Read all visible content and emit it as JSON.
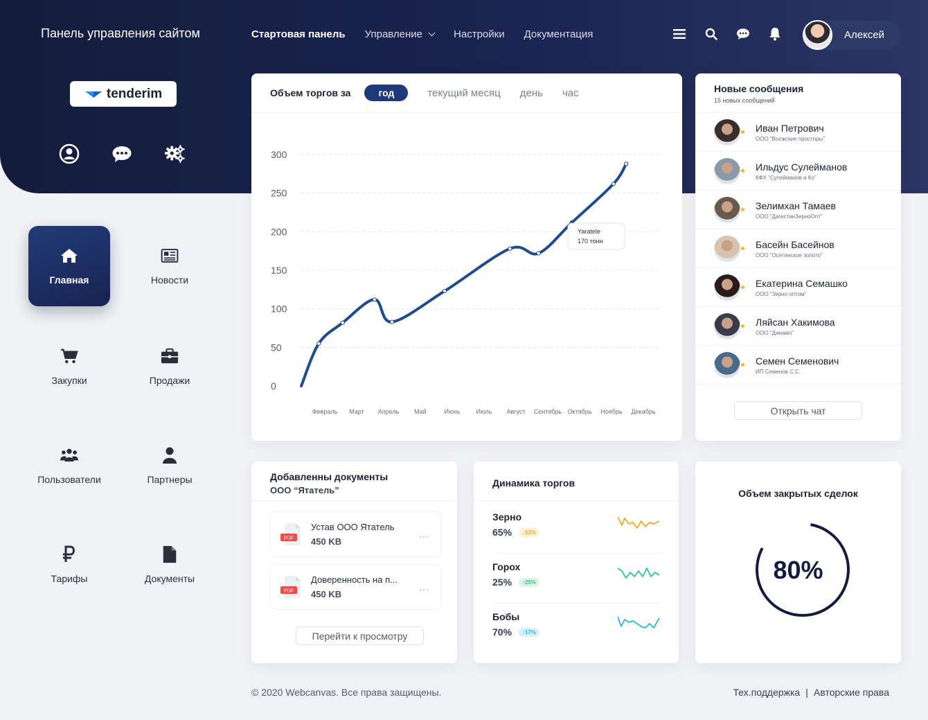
{
  "header": {
    "site_title": "Панель управления сайтом",
    "nav": [
      {
        "label": "Стартовая панель",
        "active": true
      },
      {
        "label": "Управление",
        "dropdown": true
      },
      {
        "label": "Настройки"
      },
      {
        "label": "Документация"
      }
    ],
    "icons": [
      "menu-icon",
      "search-icon",
      "chat-icon",
      "bell-icon"
    ],
    "user_name": "Алексей"
  },
  "logo": {
    "text": "tenderim"
  },
  "hero_icons": [
    "user-icon",
    "chat-icon",
    "gears-icon"
  ],
  "sidebar": {
    "items": [
      {
        "label": "Главная",
        "icon": "home-icon",
        "active": true
      },
      {
        "label": "Новости",
        "icon": "newspaper-icon"
      },
      {
        "label": "Закупки",
        "icon": "cart-icon"
      },
      {
        "label": "Продажи",
        "icon": "briefcase-icon"
      },
      {
        "label": "Пользователи",
        "icon": "users-icon"
      },
      {
        "label": "Партнеры",
        "icon": "person-icon"
      },
      {
        "label": "Тарифы",
        "icon": "ruble-icon"
      },
      {
        "label": "Документы",
        "icon": "document-icon"
      }
    ]
  },
  "volume_chart": {
    "title": "Объем торгов за",
    "tabs": [
      "год",
      "текущий месяц",
      "день",
      "час"
    ],
    "active_tab": "год",
    "tooltip": {
      "name": "Yaratele",
      "value": "170 тонн"
    }
  },
  "chart_data": {
    "type": "line",
    "title": "Объем торгов за",
    "categories": [
      "Февраль",
      "Март",
      "Апрель",
      "Май",
      "Июнь",
      "Июль",
      "Август",
      "Сентябрь",
      "Октябрь",
      "Ноябрь",
      "Декабрь"
    ],
    "x_points": [
      0,
      0.55,
      1.3,
      2.3,
      2.85,
      4.5,
      6.55,
      7.45,
      8.5,
      9.8,
      10.2
    ],
    "y_points": [
      0,
      55,
      82,
      112,
      83,
      123,
      178,
      172,
      212,
      262,
      288
    ],
    "yticks": [
      0,
      50,
      100,
      150,
      200,
      250,
      300
    ],
    "ylim": [
      0,
      300
    ],
    "grid": true,
    "color": "#1f4b8e"
  },
  "messages": {
    "title": "Новые сообщения",
    "subtitle": "15 новых сообщений",
    "items": [
      {
        "name": "Иван Петрович",
        "company": "ООО “Волжские просторы”",
        "color": "#3a2e2a"
      },
      {
        "name": "Ильдус Сулейманов",
        "company": "КФХ “Сулейманов и Ко”",
        "color": "#8a9aa8"
      },
      {
        "name": "Зелимхан Тамаев",
        "company": "ООО “ДагестанЗерноОпт”",
        "color": "#6a5a4e"
      },
      {
        "name": "Басейн Басейнов",
        "company": "ООО “Осетинское золото”",
        "color": "#d8c2b0"
      },
      {
        "name": "Екатерина Семашко",
        "company": "ООО “Зерно оптом”",
        "color": "#2a1a1a"
      },
      {
        "name": "Ляйсан Хакимова",
        "company": "ООО “Динамо”",
        "color": "#3a3a48"
      },
      {
        "name": "Семен Семенович",
        "company": "ИП Семенов С.С.",
        "color": "#4a6a8a"
      }
    ],
    "open_chat": "Открыть чат"
  },
  "documents": {
    "title": "Добавленны документы",
    "subtitle": "ООО “Ятатель”",
    "items": [
      {
        "name": "Устав ООО Ятатель",
        "size": "450 KB",
        "type": "PDF"
      },
      {
        "name": "Доверенность на п...",
        "size": "450 KB",
        "type": "PDF"
      }
    ],
    "more": "...",
    "button": "Перейти к просмотру"
  },
  "dynamics": {
    "title": "Динамика торгов",
    "items": [
      {
        "name": "Зерно",
        "value": "65%",
        "badge": "↓13%",
        "badge_bg": "#fdf1d6",
        "color": "#f3a823"
      },
      {
        "name": "Горох",
        "value": "25%",
        "badge": "↑25%",
        "badge_bg": "#dcf6ea",
        "color": "#2ec28a"
      },
      {
        "name": "Бобы",
        "value": "70%",
        "badge": "↑17%",
        "badge_bg": "#d8f1fa",
        "color": "#2bb4d6"
      }
    ]
  },
  "deals": {
    "title": "Объем закрытых сделок",
    "value_text": "80%",
    "value": 0.8
  },
  "footer": {
    "copyright": "© 2020 Webcanvas. Все права защищены.",
    "links": [
      "Тех.поддержка",
      "|",
      "Авторские права"
    ]
  }
}
